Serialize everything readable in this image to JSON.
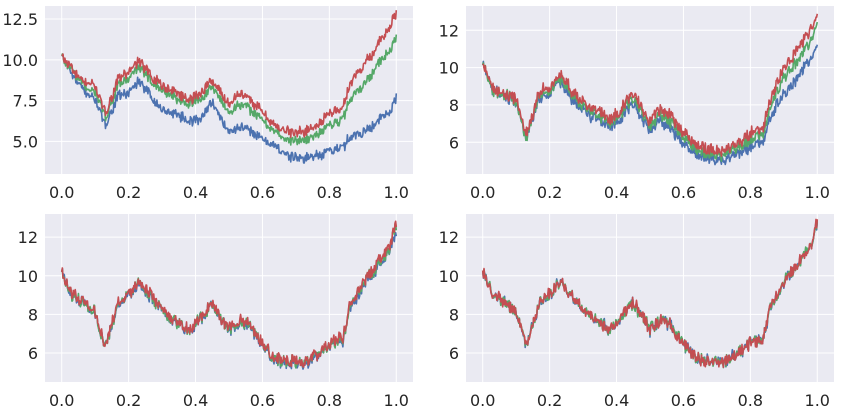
{
  "figure": {
    "background": "#ffffff",
    "axes_facecolor": "#eaeaf2",
    "grid_color": "#ffffff",
    "tick_color": "#262626"
  },
  "series_colors": [
    "#4c72b0",
    "#55a868",
    "#c44e52"
  ],
  "chart_data": [
    {
      "type": "line",
      "grid": true,
      "xlim": [
        -0.05,
        1.05
      ],
      "ylim": [
        3.0,
        13.3
      ],
      "xticks": [
        0.0,
        0.2,
        0.4,
        0.6,
        0.8,
        1.0
      ],
      "xtick_labels": [
        "0.0",
        "0.2",
        "0.4",
        "0.6",
        "0.8",
        "1.0"
      ],
      "yticks": [
        5.0,
        7.5,
        10.0,
        12.5
      ],
      "ytick_labels": [
        "5.0",
        "7.5",
        "10.0",
        "12.5"
      ],
      "series": [
        {
          "color": "#4c72b0",
          "x": [
            0,
            0.03,
            0.06,
            0.1,
            0.13,
            0.17,
            0.2,
            0.23,
            0.26,
            0.3,
            0.34,
            0.38,
            0.41,
            0.45,
            0.5,
            0.53,
            0.56,
            0.6,
            0.64,
            0.68,
            0.72,
            0.76,
            0.8,
            0.84,
            0.86,
            0.9,
            0.94,
            0.98,
            1.0
          ],
          "y": [
            10.2,
            9.2,
            8.2,
            7.6,
            6.0,
            7.8,
            8.0,
            8.6,
            7.9,
            7.0,
            6.7,
            6.2,
            6.4,
            7.4,
            5.6,
            5.9,
            5.7,
            5.2,
            4.6,
            4.1,
            3.9,
            4.2,
            4.4,
            4.6,
            5.2,
            5.6,
            6.2,
            6.8,
            7.6
          ]
        },
        {
          "color": "#55a868",
          "x": [
            0,
            0.03,
            0.06,
            0.1,
            0.13,
            0.17,
            0.2,
            0.23,
            0.26,
            0.3,
            0.34,
            0.38,
            0.41,
            0.45,
            0.5,
            0.53,
            0.56,
            0.6,
            0.64,
            0.68,
            0.72,
            0.76,
            0.8,
            0.84,
            0.86,
            0.9,
            0.94,
            0.98,
            1.0
          ],
          "y": [
            10.2,
            9.4,
            8.5,
            8.1,
            6.4,
            8.5,
            8.8,
            9.5,
            8.9,
            8.1,
            7.7,
            7.3,
            7.5,
            8.4,
            6.8,
            7.3,
            7.0,
            6.3,
            5.5,
            5.1,
            5.0,
            5.4,
            6.0,
            6.3,
            7.6,
            8.4,
            9.6,
            10.6,
            11.3
          ]
        },
        {
          "color": "#c44e52",
          "x": [
            0,
            0.03,
            0.06,
            0.1,
            0.13,
            0.17,
            0.2,
            0.23,
            0.26,
            0.3,
            0.34,
            0.38,
            0.41,
            0.45,
            0.5,
            0.53,
            0.56,
            0.6,
            0.64,
            0.68,
            0.72,
            0.76,
            0.8,
            0.84,
            0.86,
            0.9,
            0.94,
            0.98,
            1.0
          ],
          "y": [
            10.2,
            9.5,
            8.7,
            8.4,
            6.7,
            8.9,
            9.2,
            9.9,
            9.2,
            8.5,
            8.0,
            7.6,
            7.9,
            8.8,
            7.3,
            7.9,
            7.6,
            6.8,
            5.9,
            5.6,
            5.5,
            6.0,
            6.7,
            7.0,
            8.5,
            9.6,
            10.8,
            12.0,
            12.8
          ]
        }
      ]
    },
    {
      "type": "line",
      "grid": true,
      "xlim": [
        -0.05,
        1.05
      ],
      "ylim": [
        4.3,
        13.3
      ],
      "xticks": [
        0.0,
        0.2,
        0.4,
        0.6,
        0.8,
        1.0
      ],
      "xtick_labels": [
        "0.0",
        "0.2",
        "0.4",
        "0.6",
        "0.8",
        "1.0"
      ],
      "yticks": [
        6,
        8,
        10,
        12
      ],
      "ytick_labels": [
        "6",
        "8",
        "10",
        "12"
      ],
      "series": [
        {
          "color": "#4c72b0",
          "x": [
            0,
            0.03,
            0.06,
            0.1,
            0.13,
            0.17,
            0.2,
            0.23,
            0.26,
            0.3,
            0.34,
            0.38,
            0.41,
            0.45,
            0.5,
            0.53,
            0.56,
            0.6,
            0.64,
            0.68,
            0.72,
            0.76,
            0.8,
            0.84,
            0.86,
            0.9,
            0.94,
            0.98,
            1.0
          ],
          "y": [
            10.2,
            8.8,
            8.5,
            8.1,
            6.2,
            8.4,
            8.6,
            9.3,
            8.5,
            7.7,
            7.3,
            6.8,
            7.3,
            8.1,
            6.6,
            7.2,
            6.8,
            6.0,
            5.3,
            5.2,
            5.0,
            5.4,
            5.8,
            6.1,
            7.4,
            8.6,
            9.5,
            10.4,
            11.3
          ]
        },
        {
          "color": "#55a868",
          "x": [
            0,
            0.03,
            0.06,
            0.1,
            0.13,
            0.17,
            0.2,
            0.23,
            0.26,
            0.3,
            0.34,
            0.38,
            0.41,
            0.45,
            0.5,
            0.53,
            0.56,
            0.6,
            0.64,
            0.68,
            0.72,
            0.76,
            0.8,
            0.84,
            0.86,
            0.9,
            0.94,
            0.98,
            1.0
          ],
          "y": [
            10.2,
            8.85,
            8.6,
            8.2,
            6.3,
            8.5,
            8.8,
            9.5,
            8.7,
            7.9,
            7.5,
            7.0,
            7.5,
            8.4,
            6.9,
            7.5,
            7.1,
            6.3,
            5.5,
            5.4,
            5.3,
            5.7,
            6.2,
            6.6,
            8.0,
            9.4,
            10.4,
            11.4,
            12.4
          ]
        },
        {
          "color": "#c44e52",
          "x": [
            0,
            0.03,
            0.06,
            0.1,
            0.13,
            0.17,
            0.2,
            0.23,
            0.26,
            0.3,
            0.34,
            0.38,
            0.41,
            0.45,
            0.5,
            0.53,
            0.56,
            0.6,
            0.64,
            0.68,
            0.72,
            0.76,
            0.8,
            0.84,
            0.86,
            0.9,
            0.94,
            0.98,
            1.0
          ],
          "y": [
            10.2,
            8.9,
            8.7,
            8.3,
            6.4,
            8.7,
            9.0,
            9.7,
            8.9,
            8.1,
            7.7,
            7.2,
            7.7,
            8.6,
            7.2,
            7.8,
            7.4,
            6.6,
            5.8,
            5.6,
            5.5,
            5.9,
            6.5,
            6.9,
            8.4,
            9.9,
            11.0,
            12.0,
            12.8
          ]
        }
      ]
    },
    {
      "type": "line",
      "grid": true,
      "xlim": [
        -0.05,
        1.05
      ],
      "ylim": [
        4.5,
        13.2
      ],
      "xticks": [
        0.0,
        0.2,
        0.4,
        0.6,
        0.8,
        1.0
      ],
      "xtick_labels": [
        "0.0",
        "0.2",
        "0.4",
        "0.6",
        "0.8",
        "1.0"
      ],
      "yticks": [
        6,
        8,
        10,
        12
      ],
      "ytick_labels": [
        "6",
        "8",
        "10",
        "12"
      ],
      "series": [
        {
          "color": "#4c72b0",
          "x": [
            0,
            0.03,
            0.06,
            0.1,
            0.13,
            0.17,
            0.2,
            0.23,
            0.26,
            0.3,
            0.34,
            0.38,
            0.41,
            0.45,
            0.5,
            0.53,
            0.56,
            0.6,
            0.64,
            0.68,
            0.72,
            0.76,
            0.8,
            0.84,
            0.86,
            0.9,
            0.94,
            0.98,
            1.0
          ],
          "y": [
            10.2,
            9.0,
            8.6,
            8.0,
            6.3,
            8.6,
            8.9,
            9.6,
            9.0,
            8.1,
            7.6,
            7.1,
            7.7,
            8.5,
            7.1,
            7.6,
            7.4,
            6.4,
            5.6,
            5.5,
            5.4,
            5.8,
            6.4,
            6.6,
            8.2,
            9.4,
            10.4,
            11.2,
            12.3
          ]
        },
        {
          "color": "#55a868",
          "x": [
            0,
            0.03,
            0.06,
            0.1,
            0.13,
            0.17,
            0.2,
            0.23,
            0.26,
            0.3,
            0.34,
            0.38,
            0.41,
            0.45,
            0.5,
            0.53,
            0.56,
            0.6,
            0.64,
            0.68,
            0.72,
            0.76,
            0.8,
            0.84,
            0.86,
            0.9,
            0.94,
            0.98,
            1.0
          ],
          "y": [
            10.2,
            9.05,
            8.65,
            8.05,
            6.35,
            8.65,
            8.95,
            9.65,
            9.05,
            8.15,
            7.65,
            7.15,
            7.75,
            8.55,
            7.15,
            7.65,
            7.45,
            6.45,
            5.65,
            5.55,
            5.45,
            5.85,
            6.45,
            6.7,
            8.3,
            9.5,
            10.5,
            11.4,
            12.6
          ]
        },
        {
          "color": "#c44e52",
          "x": [
            0,
            0.03,
            0.06,
            0.1,
            0.13,
            0.17,
            0.2,
            0.23,
            0.26,
            0.3,
            0.34,
            0.38,
            0.41,
            0.45,
            0.5,
            0.53,
            0.56,
            0.6,
            0.64,
            0.68,
            0.72,
            0.76,
            0.8,
            0.84,
            0.86,
            0.9,
            0.94,
            0.98,
            1.0
          ],
          "y": [
            10.2,
            9.1,
            8.7,
            8.1,
            6.4,
            8.7,
            9.0,
            9.7,
            9.1,
            8.2,
            7.7,
            7.2,
            7.8,
            8.6,
            7.2,
            7.7,
            7.5,
            6.5,
            5.7,
            5.6,
            5.5,
            5.9,
            6.5,
            6.8,
            8.4,
            9.6,
            10.6,
            11.5,
            12.8
          ]
        }
      ]
    },
    {
      "type": "line",
      "grid": true,
      "xlim": [
        -0.05,
        1.05
      ],
      "ylim": [
        4.5,
        13.2
      ],
      "xticks": [
        0.0,
        0.2,
        0.4,
        0.6,
        0.8,
        1.0
      ],
      "xtick_labels": [
        "0.0",
        "0.2",
        "0.4",
        "0.6",
        "0.8",
        "1.0"
      ],
      "yticks": [
        6,
        8,
        10,
        12
      ],
      "ytick_labels": [
        "6",
        "8",
        "10",
        "12"
      ],
      "series": [
        {
          "color": "#4c72b0",
          "x": [
            0,
            0.03,
            0.06,
            0.1,
            0.13,
            0.17,
            0.2,
            0.23,
            0.26,
            0.3,
            0.34,
            0.38,
            0.41,
            0.45,
            0.5,
            0.53,
            0.56,
            0.6,
            0.64,
            0.68,
            0.72,
            0.76,
            0.8,
            0.84,
            0.86,
            0.9,
            0.94,
            0.98,
            1.0
          ],
          "y": [
            10.2,
            9.1,
            8.7,
            8.1,
            6.4,
            8.7,
            9.0,
            9.7,
            9.1,
            8.2,
            7.7,
            7.2,
            7.8,
            8.6,
            7.2,
            7.7,
            7.5,
            6.5,
            5.7,
            5.6,
            5.5,
            5.9,
            6.5,
            6.8,
            8.4,
            9.6,
            10.6,
            11.5,
            12.8
          ]
        },
        {
          "color": "#55a868",
          "x": [
            0,
            0.03,
            0.06,
            0.1,
            0.13,
            0.17,
            0.2,
            0.23,
            0.26,
            0.3,
            0.34,
            0.38,
            0.41,
            0.45,
            0.5,
            0.53,
            0.56,
            0.6,
            0.64,
            0.68,
            0.72,
            0.76,
            0.8,
            0.84,
            0.86,
            0.9,
            0.94,
            0.98,
            1.0
          ],
          "y": [
            10.2,
            9.1,
            8.7,
            8.1,
            6.4,
            8.7,
            9.0,
            9.7,
            9.1,
            8.2,
            7.7,
            7.2,
            7.8,
            8.6,
            7.2,
            7.7,
            7.5,
            6.5,
            5.7,
            5.6,
            5.5,
            5.9,
            6.5,
            6.8,
            8.4,
            9.6,
            10.6,
            11.5,
            12.8
          ]
        },
        {
          "color": "#c44e52",
          "x": [
            0,
            0.03,
            0.06,
            0.1,
            0.13,
            0.17,
            0.2,
            0.23,
            0.26,
            0.3,
            0.34,
            0.38,
            0.41,
            0.45,
            0.5,
            0.53,
            0.56,
            0.6,
            0.64,
            0.68,
            0.72,
            0.76,
            0.8,
            0.84,
            0.86,
            0.9,
            0.94,
            0.98,
            1.0
          ],
          "y": [
            10.2,
            9.1,
            8.7,
            8.1,
            6.4,
            8.7,
            9.0,
            9.7,
            9.1,
            8.2,
            7.7,
            7.2,
            7.8,
            8.6,
            7.2,
            7.7,
            7.5,
            6.5,
            5.7,
            5.6,
            5.5,
            5.9,
            6.5,
            6.8,
            8.4,
            9.6,
            10.6,
            11.5,
            12.8
          ]
        }
      ]
    }
  ]
}
